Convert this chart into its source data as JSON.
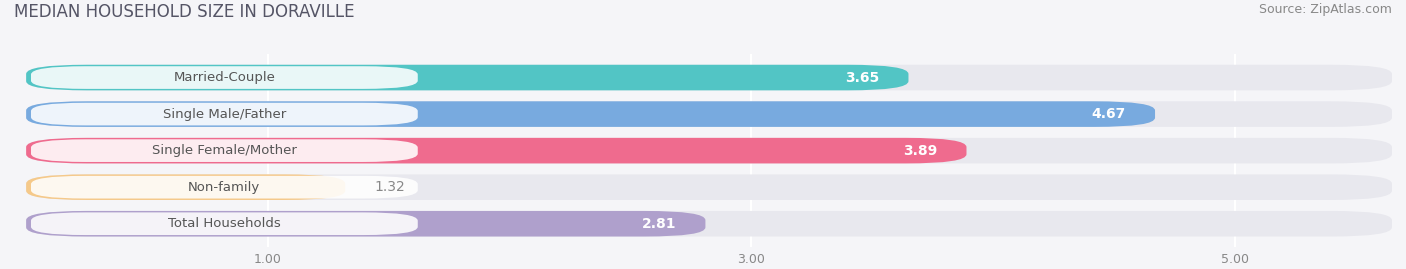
{
  "title": "MEDIAN HOUSEHOLD SIZE IN DORAVILLE",
  "source": "Source: ZipAtlas.com",
  "categories": [
    "Married-Couple",
    "Single Male/Father",
    "Single Female/Mother",
    "Non-family",
    "Total Households"
  ],
  "values": [
    3.65,
    4.67,
    3.89,
    1.32,
    2.81
  ],
  "bar_colors": [
    "#52C5C5",
    "#78AADF",
    "#EF6B8E",
    "#F5C98A",
    "#AFA0CC"
  ],
  "background_color": "#f5f5f8",
  "bar_bg_color": "#e8e8ee",
  "xmin": 0.0,
  "xmax": 5.5,
  "xlim_left": -0.05,
  "xlim_right": 5.65,
  "xticks": [
    1.0,
    3.0,
    5.0
  ],
  "label_color_inside": "#ffffff",
  "label_color_outside": "#888888",
  "title_fontsize": 12,
  "source_fontsize": 9,
  "bar_label_fontsize": 10,
  "category_fontsize": 9.5,
  "value_threshold": 2.0,
  "bar_height": 0.7,
  "bar_gap": 1.0,
  "rounding_size": 0.25
}
